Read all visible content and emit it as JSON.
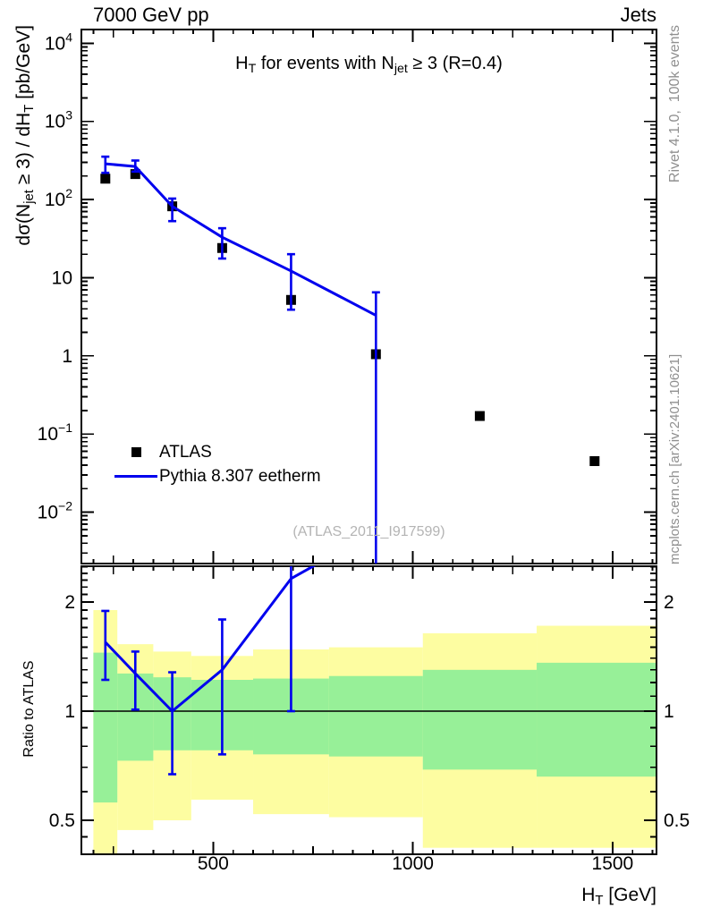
{
  "header": {
    "left": "7000 GeV pp",
    "right": "Jets"
  },
  "side_notes": {
    "top": "Rivet 4.1.0,  100k events",
    "bottom": "mcplots.cern.ch [arXiv:2401.10621]"
  },
  "watermark": "(ATLAS_2011_I917599)",
  "colors": {
    "mc_blue": "#0000ee",
    "band_yellow": "#fdfda1",
    "band_green": "#97f098",
    "side_note_gray": "#8f8f8f",
    "watermark_gray": "#b4b4b4"
  },
  "legend": {
    "items": [
      {
        "label": "ATLAS",
        "marker": "black-square"
      },
      {
        "label": "Pythia 8.307 eetherm",
        "marker": "blue-line"
      }
    ]
  },
  "chart_data": {
    "type": "line",
    "title_rich": [
      {
        "t": "H"
      },
      {
        "t": "T",
        "sub": true
      },
      {
        "t": " for events with N"
      },
      {
        "t": "jet",
        "sub": true
      },
      {
        "t": " ≥ 3 (R=0.4)"
      }
    ],
    "xlabel_rich": [
      {
        "t": "H"
      },
      {
        "t": "T",
        "sub": true
      },
      {
        "t": " [GeV]"
      }
    ],
    "x_axis": {
      "lim": [
        170,
        1610
      ],
      "major_ticks": [
        {
          "v": 500,
          "label": "500"
        },
        {
          "v": 1000,
          "label": "1000"
        },
        {
          "v": 1500,
          "label": "1500"
        }
      ],
      "medium_step": 250,
      "minor_step": 50
    },
    "main_panel": {
      "ylabel_rich": [
        {
          "t": "dσ(N"
        },
        {
          "t": "jet",
          "sub": true
        },
        {
          "t": " ≥ 3) / dH"
        },
        {
          "t": "T",
          "sub": true
        },
        {
          "t": " [pb/GeV]"
        }
      ],
      "yscale": "log",
      "ylim": [
        0.0022,
        15000
      ],
      "yticks": [
        {
          "v": 10000,
          "base": "10",
          "exp": "4"
        },
        {
          "v": 1000,
          "base": "10",
          "exp": "3"
        },
        {
          "v": 100,
          "base": "10",
          "exp": "2"
        },
        {
          "v": 10,
          "base": "10",
          "exp": ""
        },
        {
          "v": 1,
          "base": "1",
          "exp": ""
        },
        {
          "v": 0.1,
          "base": "10",
          "exp": "−1"
        },
        {
          "v": 0.01,
          "base": "10",
          "exp": "−2"
        }
      ],
      "series": {
        "atlas": {
          "name": "ATLAS",
          "x": [
            230,
            305,
            397.5,
            522.5,
            695,
            907.5,
            1167.5,
            1455
          ],
          "y": [
            185,
            212,
            82,
            24,
            5.2,
            1.05,
            0.17,
            0.045
          ]
        },
        "pythia": {
          "name": "Pythia 8.307 eetherm",
          "x": [
            230,
            305,
            397.5,
            522.5,
            695,
            907.5
          ],
          "y": [
            287,
            265,
            82,
            33,
            12.2,
            3.3
          ],
          "err_lo": [
            220,
            228,
            53,
            17.6,
            3.9,
            0.002
          ],
          "err_hi": [
            354,
            316,
            103,
            43,
            20,
            6.5
          ]
        }
      }
    },
    "ratio_panel": {
      "ylabel": "Ratio to ATLAS",
      "yscale": "log",
      "ylim": [
        0.403,
        2.51
      ],
      "yticks": [
        {
          "v": 2,
          "label": "2"
        },
        {
          "v": 1,
          "label": "1"
        },
        {
          "v": 0.5,
          "label": "0.5"
        }
      ],
      "unity": 1,
      "bin_edges": [
        200,
        260,
        350,
        445,
        600,
        790,
        1025,
        1310,
        1610
      ],
      "yellow_band": [
        [
          0.4,
          1.9
        ],
        [
          0.47,
          1.53
        ],
        [
          0.5,
          1.46
        ],
        [
          0.57,
          1.42
        ],
        [
          0.52,
          1.48
        ],
        [
          0.51,
          1.5
        ],
        [
          0.42,
          1.64
        ],
        [
          0.42,
          1.72
        ]
      ],
      "green_band": [
        [
          0.56,
          1.45
        ],
        [
          0.73,
          1.27
        ],
        [
          0.78,
          1.24
        ],
        [
          0.78,
          1.22
        ],
        [
          0.76,
          1.23
        ],
        [
          0.75,
          1.25
        ],
        [
          0.69,
          1.3
        ],
        [
          0.66,
          1.36
        ]
      ],
      "ratio": {
        "x": [
          230,
          305,
          397.5,
          522.5,
          695,
          907.5
        ],
        "y": [
          1.55,
          1.27,
          1.0,
          1.3,
          2.32,
          3.14
        ],
        "err_lo": [
          1.22,
          1.01,
          0.67,
          0.76,
          1.0,
          null
        ],
        "err_hi": [
          1.89,
          1.46,
          1.28,
          1.79,
          2.6,
          null
        ]
      }
    }
  }
}
